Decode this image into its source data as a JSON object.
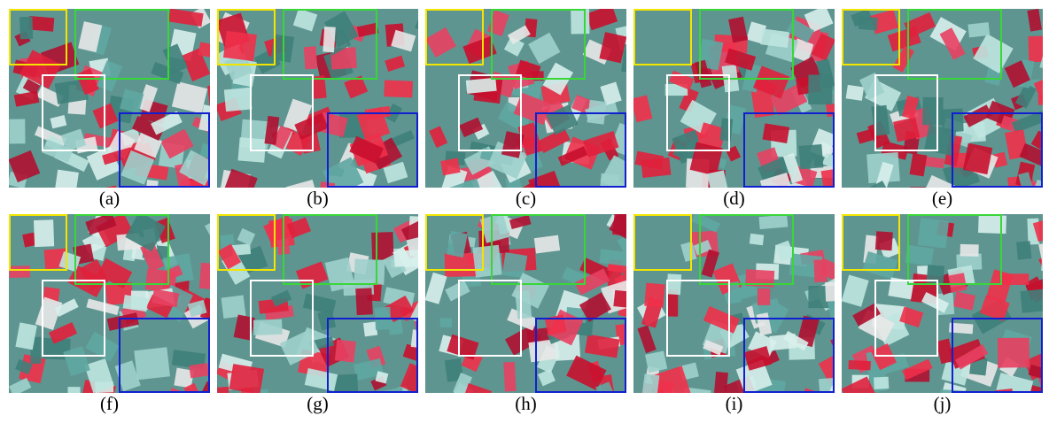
{
  "figure": {
    "captions": [
      "(a)",
      "(b)",
      "(c)",
      "(d)",
      "(e)",
      "(f)",
      "(g)",
      "(h)",
      "(i)",
      "(j)"
    ]
  }
}
